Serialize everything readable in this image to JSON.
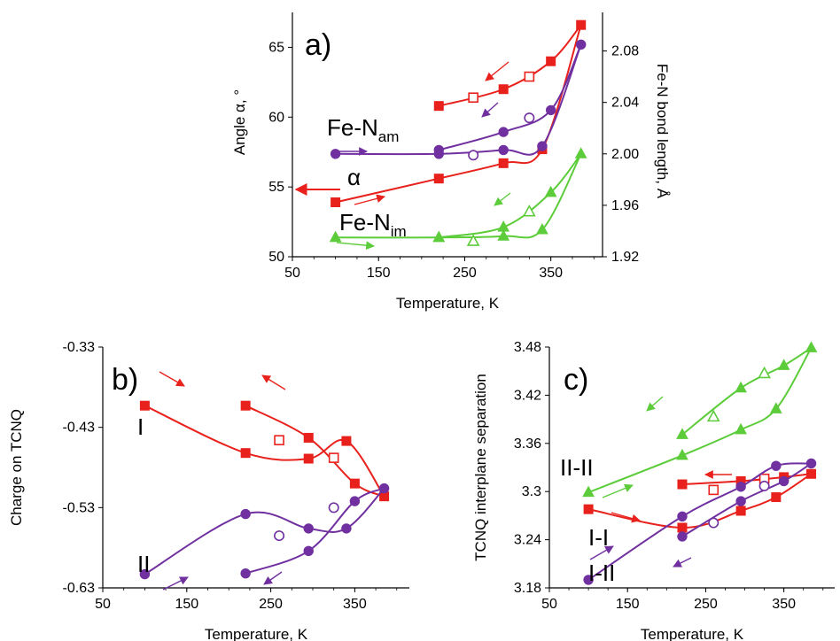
{
  "colors": {
    "red": "#e8211c",
    "purple": "#7030a0",
    "green": "#5ccc3a"
  },
  "chart_data": [
    {
      "type": "scatter",
      "panel_label": "a)",
      "xlabel": "Temperature, K",
      "ylabel": "Angle α, °",
      "y2label": "Fe-N bond length, Å",
      "xlim": [
        50,
        410
      ],
      "ylim": [
        50,
        67.5
      ],
      "y2lim": [
        1.92,
        2.11
      ],
      "xticks": [
        "50",
        "150",
        "250",
        "350"
      ],
      "yticks": [
        "50",
        "55",
        "60",
        "65"
      ],
      "y2ticks": [
        "1.92",
        "1.96",
        "2.00",
        "2.04",
        "2.08"
      ],
      "annotations": {
        "alpha": "α",
        "fe_am_main": "Fe-N",
        "fe_am_sub": "am",
        "fe_im_main": "Fe-N",
        "fe_im_sub": "im"
      },
      "series": [
        {
          "color": "red",
          "axis": "left",
          "marker": "square",
          "heating": [
            [
              100,
              53.9
            ],
            [
              220,
              55.6
            ],
            [
              295,
              56.7
            ],
            [
              340,
              57.7
            ],
            [
              385,
              66.6
            ]
          ],
          "cooling": [
            [
              385,
              66.6
            ],
            [
              350,
              64.0
            ],
            [
              295,
              62.0
            ],
            [
              220,
              60.8
            ]
          ],
          "open": [
            [
              260,
              61.4
            ],
            [
              325,
              62.9
            ]
          ]
        },
        {
          "color": "purple",
          "axis": "right",
          "marker": "circle",
          "heating": [
            [
              100,
              2.0
            ],
            [
              220,
              2.0
            ],
            [
              295,
              2.003
            ],
            [
              340,
              2.006
            ],
            [
              385,
              2.085
            ]
          ],
          "cooling": [
            [
              385,
              2.085
            ],
            [
              350,
              2.034
            ],
            [
              295,
              2.017
            ],
            [
              220,
              2.003
            ]
          ],
          "open": [
            [
              260,
              1.999
            ],
            [
              325,
              2.028
            ]
          ]
        },
        {
          "color": "green",
          "axis": "right",
          "marker": "triangle",
          "heating": [
            [
              100,
              1.935
            ],
            [
              220,
              1.935
            ],
            [
              295,
              1.936
            ],
            [
              340,
              1.941
            ],
            [
              385,
              2.0
            ]
          ],
          "cooling": [
            [
              385,
              2.0
            ],
            [
              350,
              1.97
            ],
            [
              295,
              1.943
            ],
            [
              220,
              1.935
            ]
          ],
          "open": [
            [
              260,
              1.932
            ],
            [
              325,
              1.955
            ]
          ]
        }
      ]
    },
    {
      "type": "scatter",
      "panel_label": "b)",
      "xlabel": "Temperature, K",
      "ylabel": "Charge on TCNQ",
      "xlim": [
        50,
        415
      ],
      "ylim": [
        -0.63,
        -0.33
      ],
      "xticks": [
        "50",
        "150",
        "250",
        "350"
      ],
      "yticks": [
        "-0.33",
        "-0.43",
        "-0.53",
        "-0.63"
      ],
      "annotations": {
        "I": "I",
        "II": "II"
      },
      "series": [
        {
          "name": "I",
          "color": "red",
          "marker": "square",
          "heating": [
            [
              100,
              -0.403
            ],
            [
              220,
              -0.462
            ],
            [
              295,
              -0.469
            ],
            [
              340,
              -0.447
            ],
            [
              385,
              -0.516
            ]
          ],
          "cooling": [
            [
              385,
              -0.516
            ],
            [
              350,
              -0.5
            ],
            [
              295,
              -0.443
            ],
            [
              220,
              -0.403
            ]
          ],
          "open": [
            [
              260,
              -0.446
            ],
            [
              325,
              -0.468
            ]
          ]
        },
        {
          "name": "II",
          "color": "purple",
          "marker": "circle",
          "heating": [
            [
              100,
              -0.613
            ],
            [
              220,
              -0.538
            ],
            [
              295,
              -0.556
            ],
            [
              340,
              -0.556
            ],
            [
              385,
              -0.506
            ]
          ],
          "cooling": [
            [
              385,
              -0.506
            ],
            [
              350,
              -0.522
            ],
            [
              295,
              -0.584
            ],
            [
              220,
              -0.612
            ]
          ],
          "open": [
            [
              260,
              -0.565
            ],
            [
              325,
              -0.53
            ]
          ]
        }
      ]
    },
    {
      "type": "scatter",
      "panel_label": "c)",
      "xlabel": "Temperature, K",
      "ylabel": "TCNQ interplane separation",
      "xlim": [
        50,
        415
      ],
      "ylim": [
        3.18,
        3.48
      ],
      "xticks": [
        "50",
        "150",
        "250",
        "350"
      ],
      "yticks": [
        "3.48",
        "3.42",
        "3.36",
        "3.3",
        "3.24",
        "3.18"
      ],
      "annotations": {
        "II-II": "II-II",
        "I-I": "I-I",
        "I-II": "I-II"
      },
      "series": [
        {
          "name": "II-II",
          "color": "green",
          "marker": "triangle",
          "heating": [
            [
              100,
              3.299
            ],
            [
              220,
              3.345
            ],
            [
              295,
              3.377
            ],
            [
              340,
              3.403
            ],
            [
              385,
              3.479
            ]
          ],
          "cooling": [
            [
              385,
              3.479
            ],
            [
              350,
              3.457
            ],
            [
              295,
              3.429
            ],
            [
              220,
              3.371
            ]
          ],
          "open": [
            [
              260,
              3.393
            ],
            [
              325,
              3.447
            ]
          ]
        },
        {
          "name": "I-I",
          "color": "red",
          "marker": "square",
          "heating": [
            [
              100,
              3.278
            ],
            [
              220,
              3.255
            ],
            [
              295,
              3.276
            ],
            [
              340,
              3.293
            ],
            [
              385,
              3.322
            ]
          ],
          "cooling": [
            [
              385,
              3.322
            ],
            [
              350,
              3.318
            ],
            [
              295,
              3.313
            ],
            [
              220,
              3.309
            ]
          ],
          "open": [
            [
              260,
              3.302
            ],
            [
              325,
              3.316
            ]
          ]
        },
        {
          "name": "I-II",
          "color": "purple",
          "marker": "circle",
          "heating": [
            [
              100,
              3.19
            ],
            [
              220,
              3.269
            ],
            [
              295,
              3.306
            ],
            [
              340,
              3.332
            ],
            [
              385,
              3.335
            ]
          ],
          "cooling": [
            [
              385,
              3.335
            ],
            [
              350,
              3.313
            ],
            [
              295,
              3.288
            ],
            [
              220,
              3.244
            ]
          ],
          "open": [
            [
              260,
              3.261
            ],
            [
              325,
              3.307
            ]
          ]
        }
      ]
    }
  ]
}
